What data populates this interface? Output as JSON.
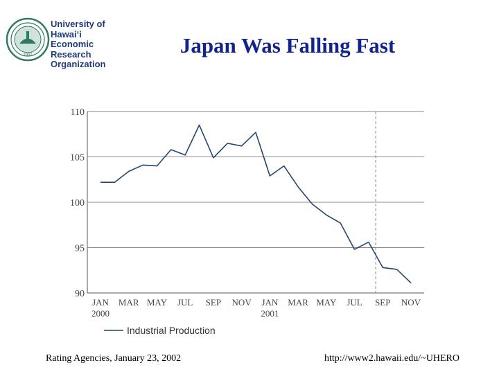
{
  "logo": {
    "lines": [
      "University of",
      "Hawaiʻi",
      "Economic",
      "Research",
      "Organization"
    ],
    "seal_color": "#2f7a60",
    "text_color": "#1f3b7a"
  },
  "title": "Japan Was Falling Fast",
  "footer": {
    "left": "Rating Agencies, January 23, 2002",
    "right": "http://www2.hawaii.edu/~UHERO"
  },
  "colors": {
    "title": "#12238a",
    "line": "#24466e",
    "grid": "#888888"
  },
  "chart_data": {
    "type": "line",
    "title": "Japan Was Falling Fast",
    "xlabel": "",
    "ylabel": "",
    "ylim": [
      90,
      110
    ],
    "yticks": [
      110,
      105,
      100,
      95,
      90
    ],
    "x_index_range": [
      0,
      22
    ],
    "xtick_labels": [
      {
        "i": 0,
        "label": "JAN",
        "sub": "2000"
      },
      {
        "i": 2,
        "label": "MAR"
      },
      {
        "i": 4,
        "label": "MAY"
      },
      {
        "i": 6,
        "label": "JUL"
      },
      {
        "i": 8,
        "label": "SEP"
      },
      {
        "i": 10,
        "label": "NOV"
      },
      {
        "i": 12,
        "label": "JAN",
        "sub": "2001"
      },
      {
        "i": 14,
        "label": "MAR"
      },
      {
        "i": 16,
        "label": "MAY"
      },
      {
        "i": 18,
        "label": "JUL"
      },
      {
        "i": 20,
        "label": "SEP"
      },
      {
        "i": 22,
        "label": "NOV"
      }
    ],
    "dashed_vline_index": 19.5,
    "series": [
      {
        "name": "Industrial Production",
        "values": [
          102.2,
          102.2,
          103.4,
          104.1,
          104.0,
          105.8,
          105.2,
          108.5,
          104.9,
          106.5,
          106.2,
          107.7,
          102.9,
          104.0,
          101.7,
          99.8,
          98.6,
          97.7,
          94.8,
          95.6,
          92.8,
          92.6,
          91.1
        ],
        "x": [
          0,
          1,
          2,
          3,
          4,
          5,
          6,
          7,
          8,
          9,
          10,
          11,
          12,
          13,
          14,
          15,
          16,
          17,
          18,
          19,
          20,
          21,
          22
        ]
      }
    ],
    "legend": "bottom-left"
  }
}
